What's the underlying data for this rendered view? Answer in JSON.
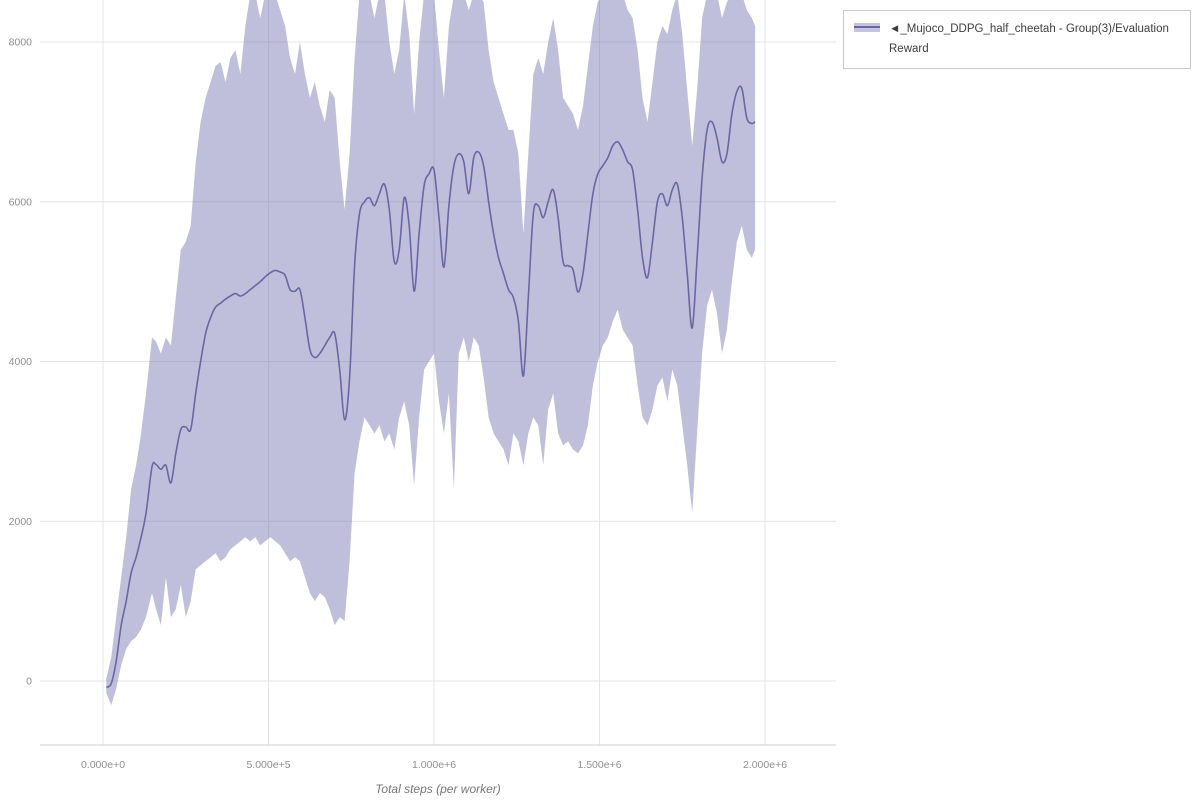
{
  "legend": {
    "label": "◄_Mujoco_DDPG_half_cheetah - Group(3)/Evaluation Reward"
  },
  "axes": {
    "x_title": "Total steps (per worker)"
  },
  "colors": {
    "line": "#6a66a3",
    "band": "#7470b0",
    "grid": "#e4e4e4",
    "tick_text": "#8f8f8f"
  },
  "chart_data": {
    "type": "line",
    "title": "",
    "xlabel": "Total steps (per worker)",
    "ylabel": "Evaluation Reward",
    "grid": true,
    "legend_position": "top-right-outside",
    "xlim": [
      -190000,
      2215000
    ],
    "ylim": [
      -800,
      8525
    ],
    "x_ticks": [
      {
        "value": 0,
        "label": "0.000e+0"
      },
      {
        "value": 500000,
        "label": "5.000e+5"
      },
      {
        "value": 1000000,
        "label": "1.000e+6"
      },
      {
        "value": 1500000,
        "label": "1.500e+6"
      },
      {
        "value": 2000000,
        "label": "2.000e+6"
      }
    ],
    "y_ticks": [
      {
        "value": 0,
        "label": "0"
      },
      {
        "value": 2000,
        "label": "2000"
      },
      {
        "value": 4000,
        "label": "4000"
      },
      {
        "value": 6000,
        "label": "6000"
      },
      {
        "value": 8000,
        "label": "8000"
      }
    ],
    "series": [
      {
        "name": "◄_Mujoco_DDPG_half_cheetah - Group(3)/Evaluation Reward",
        "color": "#6a66a3",
        "band_color": "#7470b0",
        "band_opacity": 0.45,
        "x": [
          10000,
          25000,
          40000,
          55000,
          70000,
          85000,
          100000,
          115000,
          130000,
          148000,
          160000,
          175000,
          190000,
          205000,
          220000,
          235000,
          250000,
          265000,
          280000,
          295000,
          310000,
          325000,
          340000,
          355000,
          370000,
          385000,
          400000,
          415000,
          430000,
          445000,
          460000,
          475000,
          490000,
          505000,
          520000,
          535000,
          550000,
          565000,
          580000,
          595000,
          610000,
          625000,
          640000,
          655000,
          670000,
          685000,
          700000,
          715000,
          730000,
          745000,
          760000,
          775000,
          790000,
          805000,
          820000,
          835000,
          850000,
          865000,
          880000,
          895000,
          910000,
          925000,
          940000,
          955000,
          970000,
          985000,
          1000000,
          1015000,
          1030000,
          1045000,
          1060000,
          1075000,
          1090000,
          1105000,
          1120000,
          1135000,
          1150000,
          1165000,
          1180000,
          1195000,
          1210000,
          1225000,
          1240000,
          1255000,
          1270000,
          1285000,
          1300000,
          1315000,
          1330000,
          1345000,
          1360000,
          1375000,
          1390000,
          1405000,
          1420000,
          1435000,
          1450000,
          1465000,
          1480000,
          1495000,
          1510000,
          1525000,
          1540000,
          1555000,
          1570000,
          1585000,
          1600000,
          1615000,
          1630000,
          1645000,
          1660000,
          1675000,
          1690000,
          1705000,
          1720000,
          1735000,
          1750000,
          1765000,
          1780000,
          1795000,
          1810000,
          1825000,
          1840000,
          1855000,
          1870000,
          1885000,
          1900000,
          1915000,
          1930000,
          1945000,
          1960000,
          1970000
        ],
        "mean": [
          -80,
          -30,
          250,
          700,
          1000,
          1350,
          1550,
          1800,
          2100,
          2680,
          2710,
          2650,
          2700,
          2480,
          2850,
          3150,
          3180,
          3150,
          3600,
          4000,
          4350,
          4550,
          4680,
          4730,
          4780,
          4820,
          4850,
          4820,
          4850,
          4900,
          4950,
          5000,
          5060,
          5110,
          5140,
          5120,
          5080,
          4900,
          4880,
          4900,
          4550,
          4150,
          4050,
          4100,
          4200,
          4300,
          4350,
          3900,
          3270,
          3800,
          5200,
          5850,
          6000,
          6050,
          5950,
          6100,
          6220,
          5900,
          5250,
          5400,
          6050,
          5700,
          4880,
          5600,
          6200,
          6350,
          6400,
          5800,
          5180,
          5950,
          6450,
          6600,
          6500,
          6100,
          6550,
          6620,
          6450,
          6000,
          5600,
          5300,
          5100,
          4900,
          4800,
          4500,
          3820,
          4800,
          5850,
          5950,
          5800,
          6000,
          6150,
          5800,
          5250,
          5200,
          5150,
          4870,
          5100,
          5600,
          6100,
          6350,
          6450,
          6550,
          6700,
          6750,
          6650,
          6500,
          6400,
          5900,
          5300,
          5050,
          5500,
          6000,
          6100,
          5950,
          6150,
          6220,
          5800,
          5100,
          4420,
          5300,
          6300,
          6900,
          7000,
          6800,
          6500,
          6600,
          7100,
          7380,
          7420,
          7050,
          6980,
          7000
        ],
        "band_low": [
          -150,
          -300,
          -100,
          200,
          400,
          500,
          550,
          650,
          800,
          1100,
          900,
          700,
          1300,
          800,
          900,
          1200,
          800,
          1000,
          1400,
          1450,
          1500,
          1550,
          1600,
          1500,
          1550,
          1650,
          1700,
          1750,
          1800,
          1750,
          1800,
          1700,
          1750,
          1800,
          1750,
          1700,
          1600,
          1500,
          1550,
          1500,
          1300,
          1100,
          1000,
          1100,
          1050,
          900,
          700,
          800,
          750,
          1500,
          2600,
          3000,
          3300,
          3200,
          3100,
          3200,
          3000,
          3100,
          2900,
          3300,
          3500,
          3200,
          2450,
          3300,
          3900,
          4000,
          4100,
          3500,
          3100,
          3600,
          2400,
          4100,
          4300,
          4000,
          4300,
          4200,
          3800,
          3300,
          3100,
          3000,
          2900,
          2700,
          3100,
          3000,
          2700,
          3100,
          3300,
          3200,
          2700,
          3400,
          3600,
          3100,
          2950,
          3000,
          2900,
          2850,
          2950,
          3200,
          3700,
          4000,
          4200,
          4300,
          4500,
          4650,
          4400,
          4300,
          4200,
          3700,
          3300,
          3200,
          3400,
          3700,
          3800,
          3500,
          3900,
          3700,
          3200,
          2700,
          2100,
          3100,
          4100,
          4700,
          4900,
          4600,
          4100,
          4400,
          5000,
          5500,
          5700,
          5400,
          5300,
          5400
        ],
        "band_high": [
          30,
          300,
          800,
          1300,
          1800,
          2400,
          2700,
          3100,
          3600,
          4300,
          4250,
          4100,
          4300,
          4200,
          4800,
          5400,
          5500,
          5700,
          6500,
          7000,
          7300,
          7500,
          7700,
          7750,
          7500,
          7800,
          7900,
          7600,
          8200,
          8600,
          8600,
          8300,
          8600,
          8600,
          8600,
          8400,
          8200,
          7800,
          7600,
          8000,
          7600,
          7300,
          7500,
          7200,
          7000,
          7400,
          7300,
          6500,
          5900,
          6600,
          7800,
          8600,
          8600,
          8600,
          8300,
          8600,
          8600,
          8000,
          7600,
          7900,
          8600,
          8100,
          7100,
          8000,
          8600,
          8600,
          8600,
          7900,
          7300,
          8200,
          8600,
          8600,
          8600,
          8400,
          8600,
          8600,
          8500,
          7900,
          7500,
          7300,
          7100,
          6900,
          6900,
          6600,
          5600,
          6600,
          7600,
          7800,
          7600,
          8000,
          8300,
          7900,
          7300,
          7200,
          7100,
          6900,
          7200,
          7700,
          8200,
          8500,
          8600,
          8600,
          8600,
          8600,
          8600,
          8400,
          8300,
          7900,
          7300,
          7000,
          7500,
          8000,
          8200,
          8100,
          8400,
          8600,
          8100,
          7400,
          6700,
          7400,
          8300,
          8600,
          8600,
          8600,
          8300,
          8500,
          8600,
          8600,
          8600,
          8400,
          8300,
          8200
        ]
      }
    ]
  }
}
